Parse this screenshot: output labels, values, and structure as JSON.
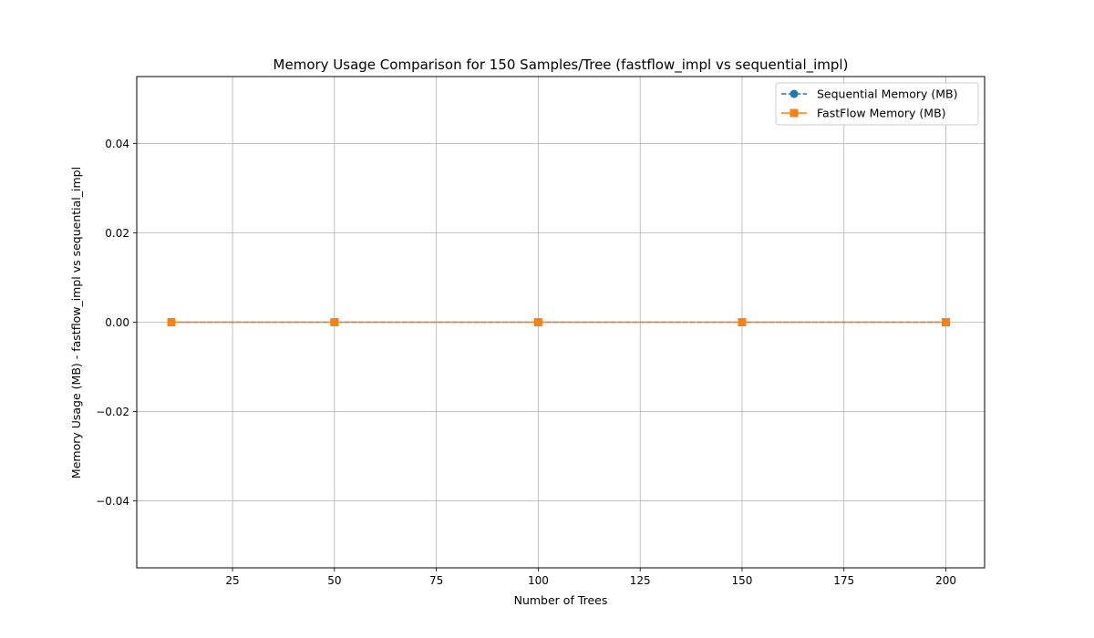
{
  "chart_data": {
    "type": "line",
    "title": "Memory Usage Comparison for 150 Samples/Tree (fastflow_impl vs sequential_impl)",
    "xlabel": "Number of Trees",
    "ylabel": "Memory Usage (MB) - fastflow_impl vs sequential_impl",
    "x": [
      10,
      50,
      100,
      150,
      200
    ],
    "xlim": [
      1.5,
      209.5
    ],
    "ylim": [
      -0.055,
      0.055
    ],
    "xticks": [
      25,
      50,
      75,
      100,
      125,
      150,
      175,
      200
    ],
    "xtick_labels": [
      "25",
      "50",
      "75",
      "100",
      "125",
      "150",
      "175",
      "200"
    ],
    "yticks": [
      -0.04,
      -0.02,
      0.0,
      0.02,
      0.04
    ],
    "ytick_labels": [
      "−0.04",
      "−0.02",
      "0.00",
      "0.02",
      "0.04"
    ],
    "grid": true,
    "legend_position": "top-right",
    "series": [
      {
        "name": "Sequential Memory (MB)",
        "values": [
          0,
          0,
          0,
          0,
          0
        ],
        "color": "#1f77b4",
        "marker": "circle",
        "line_style": "dashed"
      },
      {
        "name": "FastFlow Memory (MB)",
        "values": [
          0,
          0,
          0,
          0,
          0
        ],
        "color": "#ff7f0e",
        "marker": "square",
        "line_style": "solid"
      }
    ]
  }
}
